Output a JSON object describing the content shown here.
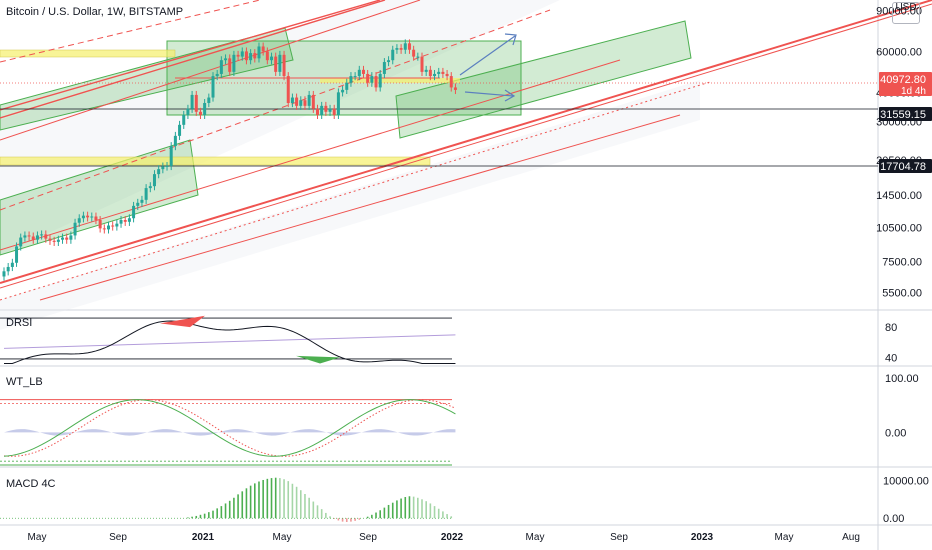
{
  "header": {
    "title": "Bitcoin / U.S. Dollar, 1W, BITSTAMP"
  },
  "price_axis": {
    "unit_top": "",
    "unit_bottom": "USD"
  },
  "panes": {
    "drsi": {
      "label": "DRSI",
      "ticks": [
        "80",
        "40"
      ]
    },
    "wt": {
      "label": "WT_LB",
      "ticks": [
        "100.00",
        "0.00"
      ]
    },
    "macd": {
      "label": "MACD 4C",
      "ticks": [
        "10000.00",
        "0.00"
      ]
    }
  },
  "price_tags": [
    {
      "value": "40972.80",
      "sub": "1d 4h",
      "bg": "#ef5350",
      "fg": "#ffffff"
    },
    {
      "value": "31559.15",
      "sub": "",
      "bg": "#131722",
      "fg": "#ffffff"
    },
    {
      "value": "17704.78",
      "sub": "",
      "bg": "#131722",
      "fg": "#ffffff"
    }
  ],
  "colors": {
    "up": "#26a69a",
    "down": "#ef5350",
    "channel_fill": "#4caf50",
    "channel_line": "#ef5350",
    "zone": "#f5f06b"
  },
  "chart_data": [
    {
      "type": "candlestick",
      "title": "Bitcoin / U.S. Dollar, 1W, BITSTAMP",
      "y_scale": "log",
      "y_ticks": [
        90000,
        60000,
        40000,
        30000,
        20500,
        14500,
        10500,
        7500,
        5500
      ],
      "y_tick_labels": [
        "90000.00",
        "60000.00",
        "40000.00",
        "30000.00",
        "20500.00",
        "14500.00",
        "10500.00",
        "7500.00",
        "5500.00"
      ],
      "ylim": [
        4500,
        95000
      ],
      "x_ticks": [
        "May",
        "Sep",
        "2021",
        "May",
        "Sep",
        "2022",
        "May",
        "Sep",
        "2023",
        "May",
        "Aug"
      ],
      "x_tick_positions": [
        "2020-05",
        "2020-09",
        "2021-01",
        "2021-05",
        "2021-09",
        "2022-01",
        "2022-05",
        "2022-09",
        "2023-01",
        "2023-05",
        "2023-08"
      ],
      "horizontal_lines": [
        31559.15,
        17704.78
      ],
      "last_price": 40972.8,
      "closes": [
        6800,
        7100,
        7400,
        8700,
        9500,
        9700,
        9600,
        9300,
        9700,
        9800,
        9400,
        9200,
        9100,
        9300,
        9500,
        9300,
        9700,
        11000,
        11500,
        11800,
        11600,
        11700,
        11300,
        10400,
        10300,
        10700,
        10600,
        10900,
        11300,
        11100,
        11500,
        13000,
        13400,
        13800,
        15500,
        15800,
        17800,
        18700,
        19200,
        19300,
        23500,
        26000,
        29000,
        32000,
        34000,
        39000,
        33000,
        32000,
        36000,
        38000,
        47000,
        48000,
        55000,
        56000,
        49000,
        58000,
        57000,
        60000,
        55000,
        59000,
        56000,
        63000,
        60000,
        55000,
        57000,
        49000,
        58000,
        47000,
        36000,
        38000,
        35000,
        37000,
        35000,
        39000,
        34000,
        32000,
        35000,
        33000,
        34000,
        32000,
        40000,
        41000,
        44000,
        47000,
        47000,
        50000,
        48000,
        44000,
        47000,
        42000,
        48000,
        54000,
        55000,
        61000,
        62000,
        61000,
        65000,
        61000,
        57000,
        57000,
        49000,
        50000,
        47000,
        48000,
        49000,
        48000,
        47000,
        42000,
        40972.8
      ]
    },
    {
      "type": "line",
      "title": "DRSI",
      "y_ticks": [
        80,
        40
      ],
      "ylim": [
        30,
        100
      ]
    },
    {
      "type": "line",
      "title": "WT_LB",
      "y_ticks": [
        100,
        0
      ],
      "ylim": [
        -60,
        120
      ]
    },
    {
      "type": "bar",
      "title": "MACD 4C",
      "y_ticks": [
        10000,
        0
      ],
      "ylim": [
        -1000,
        13000
      ],
      "values": [
        0,
        0,
        0,
        0,
        0,
        0,
        0,
        0,
        0,
        0,
        0,
        0,
        0,
        0,
        0,
        0,
        0,
        0,
        0,
        0,
        0,
        0,
        0,
        0,
        0,
        0,
        0,
        0,
        0,
        200,
        400,
        600,
        900,
        1200,
        1600,
        2000,
        2600,
        3200,
        3900,
        4600,
        5400,
        6300,
        7100,
        7900,
        8600,
        9200,
        9700,
        10100,
        10400,
        10600,
        10700,
        10600,
        10300,
        9800,
        9100,
        8300,
        7400,
        6400,
        5400,
        4400,
        3400,
        2400,
        1400,
        500,
        -200,
        -600,
        -900,
        -1000,
        -900,
        -700,
        -400,
        0,
        400,
        900,
        1500,
        2100,
        2800,
        3500,
        4100,
        4700,
        5200,
        5600,
        5800,
        5700,
        5400,
        5000,
        4500,
        3900,
        3200,
        2500,
        1800,
        1100,
        500
      ]
    }
  ]
}
